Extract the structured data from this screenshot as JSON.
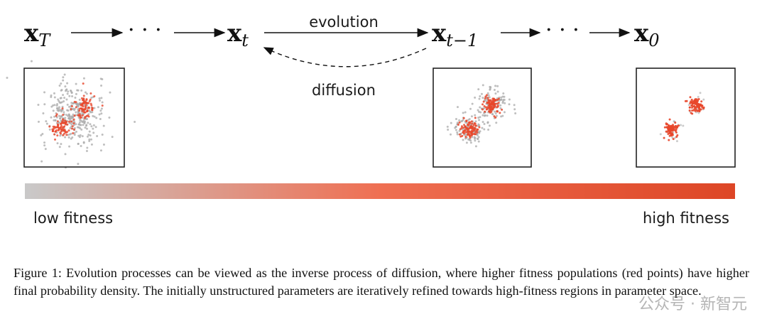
{
  "figure": {
    "sequence": {
      "x_T": {
        "base": "x",
        "sub": "T"
      },
      "dots_left": "· · ·",
      "x_t": {
        "base": "x",
        "sub": "t"
      },
      "x_t_minus_1": {
        "base": "x",
        "sub": "t−1"
      },
      "dots_right": "· · ·",
      "x_0": {
        "base": "x",
        "sub": "0"
      }
    },
    "forward_label": "evolution",
    "backward_label": "diffusion",
    "gradient": {
      "low_label": "low fitness",
      "high_label": "high fitness"
    }
  },
  "caption": "Figure 1: Evolution processes can be viewed as the inverse process of diffusion, where higher fitness populations (red points) have higher final probability density. The initially unstructured parameters are iteratively refined towards high-fitness regions in parameter space.",
  "watermark": "公众号 · 新智元"
}
